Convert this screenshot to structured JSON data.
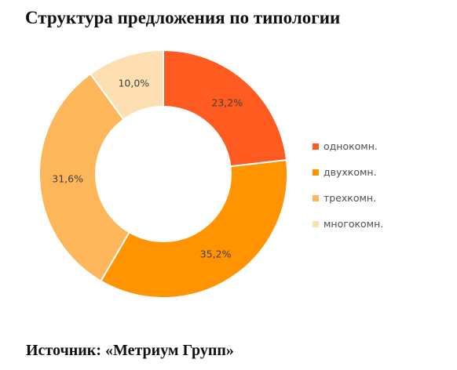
{
  "title": "Структура предложения по типологии",
  "source": "Источник: «Метриум Групп»",
  "chart_data": {
    "type": "pie",
    "variant": "donut",
    "categories": [
      "однокомн.",
      "двухкомн.",
      "трехкомн.",
      "многокомн."
    ],
    "values": [
      23.2,
      35.2,
      31.6,
      10.0
    ],
    "labels": [
      "23,2%",
      "35,2%",
      "31,6%",
      "10,0%"
    ],
    "colors": [
      "#FF5A1F",
      "#FF9300",
      "#FDB65A",
      "#FEDFB2"
    ],
    "legend_position": "right",
    "start_angle": "12 o'clock",
    "direction": "clockwise"
  }
}
